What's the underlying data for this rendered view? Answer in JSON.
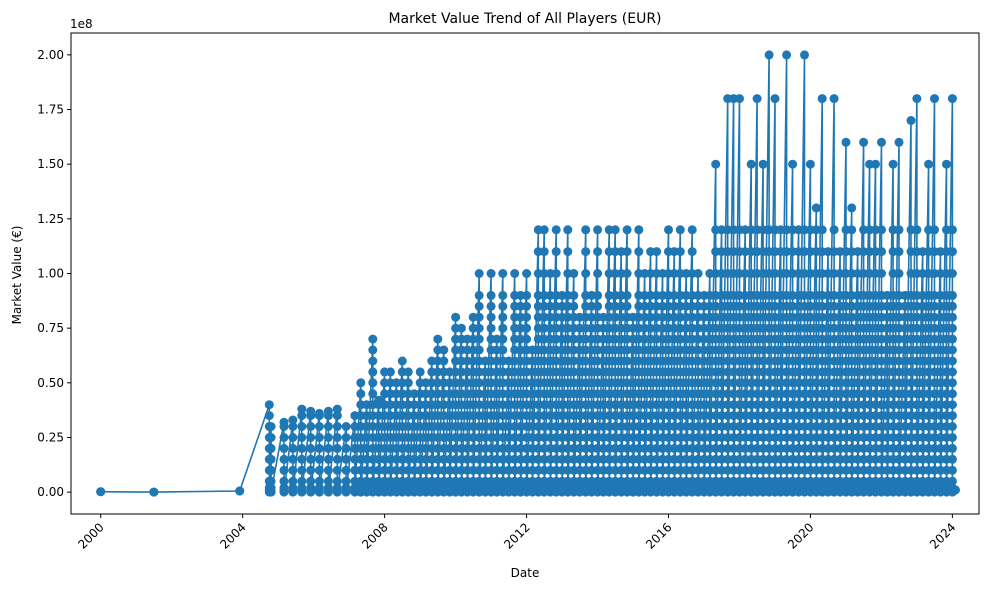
{
  "chart_data": {
    "type": "line",
    "title": "Market Value Trend of All Players (EUR)",
    "xlabel": "Date",
    "ylabel": "Market Value (€)",
    "y_scale_label": "1e8",
    "marker": "circle",
    "line_color": "#1f77b4",
    "x_axis_type": "date",
    "xlim": [
      "1999-03-01",
      "2024-10-01"
    ],
    "ylim": [
      -10000000,
      210000000
    ],
    "grid": false,
    "legend": "none",
    "x_ticks": [
      {
        "value": "2000-01-01",
        "label": "2000"
      },
      {
        "value": "2004-01-01",
        "label": "2004"
      },
      {
        "value": "2008-01-01",
        "label": "2008"
      },
      {
        "value": "2012-01-01",
        "label": "2012"
      },
      {
        "value": "2016-01-01",
        "label": "2016"
      },
      {
        "value": "2020-01-01",
        "label": "2020"
      },
      {
        "value": "2024-01-01",
        "label": "2024"
      }
    ],
    "y_ticks": [
      {
        "value": 0,
        "label": "0.00"
      },
      {
        "value": 25000000,
        "label": "0.25"
      },
      {
        "value": 50000000,
        "label": "0.50"
      },
      {
        "value": 75000000,
        "label": "0.75"
      },
      {
        "value": 100000000,
        "label": "1.00"
      },
      {
        "value": 125000000,
        "label": "1.25"
      },
      {
        "value": 150000000,
        "label": "1.50"
      },
      {
        "value": 175000000,
        "label": "1.75"
      },
      {
        "value": 200000000,
        "label": "2.00"
      }
    ],
    "series": [
      {
        "x": [
          "2000-01-01",
          "2001-07-01",
          "2003-12-01",
          "2004-10-01",
          "2004-10-20",
          "2005-03-01",
          "2005-06-01",
          "2005-09-01",
          "2005-12-01",
          "2006-03-01",
          "2006-06-01",
          "2006-09-01",
          "2006-12-01",
          "2007-03-01",
          "2007-05-01",
          "2007-07-01",
          "2007-09-01",
          "2007-11-01",
          "2008-01-01",
          "2008-03-01",
          "2008-05-01",
          "2008-07-01",
          "2008-09-01",
          "2008-11-01",
          "2009-01-01",
          "2009-03-01",
          "2009-05-01",
          "2009-07-01",
          "2009-09-01",
          "2009-11-01",
          "2010-01-01",
          "2010-03-01",
          "2010-05-01",
          "2010-07-01",
          "2010-09-01",
          "2010-11-01",
          "2011-01-01",
          "2011-03-01",
          "2011-05-01",
          "2011-07-01",
          "2011-09-01",
          "2011-11-01",
          "2012-01-01",
          "2012-03-01",
          "2012-05-01",
          "2012-07-01",
          "2012-09-01",
          "2012-11-01",
          "2013-01-01",
          "2013-03-01",
          "2013-05-01",
          "2013-07-01",
          "2013-09-01",
          "2013-11-01",
          "2014-01-01",
          "2014-03-01",
          "2014-05-01",
          "2014-07-01",
          "2014-09-01",
          "2014-11-01",
          "2015-01-01",
          "2015-03-01",
          "2015-05-01",
          "2015-07-01",
          "2015-09-01",
          "2015-11-01",
          "2016-01-01",
          "2016-03-01",
          "2016-05-01",
          "2016-07-01",
          "2016-09-01",
          "2016-11-01",
          "2017-01-01",
          "2017-03-01",
          "2017-05-01",
          "2017-07-01",
          "2017-09-01",
          "2017-11-01",
          "2018-01-01",
          "2018-03-01",
          "2018-05-01",
          "2018-07-01",
          "2018-09-01",
          "2018-11-01",
          "2019-01-01",
          "2019-03-01",
          "2019-05-01",
          "2019-07-01",
          "2019-09-01",
          "2019-11-01",
          "2020-01-01",
          "2020-03-01",
          "2020-05-01",
          "2020-07-01",
          "2020-09-01",
          "2020-11-01",
          "2021-01-01",
          "2021-03-01",
          "2021-05-01",
          "2021-07-01",
          "2021-09-01",
          "2021-11-01",
          "2022-01-01",
          "2022-03-01",
          "2022-05-01",
          "2022-07-01",
          "2022-09-01",
          "2022-11-01",
          "2023-01-01",
          "2023-03-01",
          "2023-05-01",
          "2023-07-01",
          "2023-09-01",
          "2023-11-01",
          "2024-01-01",
          "2024-02-01"
        ],
        "max_values": [
          200000,
          0,
          500000,
          40000000,
          30000000,
          32000000,
          33000000,
          38000000,
          37000000,
          36000000,
          37000000,
          38000000,
          30000000,
          35000000,
          50000000,
          40000000,
          70000000,
          42000000,
          55000000,
          55000000,
          50000000,
          60000000,
          55000000,
          45000000,
          55000000,
          50000000,
          60000000,
          70000000,
          65000000,
          55000000,
          80000000,
          75000000,
          70000000,
          80000000,
          100000000,
          60000000,
          100000000,
          70000000,
          100000000,
          60000000,
          100000000,
          90000000,
          100000000,
          65000000,
          120000000,
          120000000,
          100000000,
          120000000,
          90000000,
          120000000,
          100000000,
          80000000,
          120000000,
          90000000,
          120000000,
          80000000,
          120000000,
          120000000,
          110000000,
          120000000,
          80000000,
          120000000,
          100000000,
          110000000,
          110000000,
          100000000,
          120000000,
          110000000,
          120000000,
          100000000,
          120000000,
          100000000,
          90000000,
          100000000,
          150000000,
          120000000,
          180000000,
          180000000,
          180000000,
          120000000,
          150000000,
          180000000,
          150000000,
          200000000,
          180000000,
          120000000,
          200000000,
          150000000,
          120000000,
          200000000,
          150000000,
          130000000,
          180000000,
          110000000,
          180000000,
          110000000,
          160000000,
          130000000,
          110000000,
          160000000,
          150000000,
          150000000,
          160000000,
          90000000,
          150000000,
          160000000,
          90000000,
          170000000,
          180000000,
          110000000,
          150000000,
          180000000,
          110000000,
          150000000,
          180000000,
          1000000
        ],
        "min_values": [
          200000,
          0,
          500000,
          0,
          0,
          0,
          0,
          0,
          0,
          0,
          0,
          0,
          0,
          0,
          0,
          0,
          0,
          0,
          0,
          0,
          0,
          0,
          0,
          0,
          0,
          0,
          0,
          0,
          0,
          0,
          0,
          0,
          0,
          0,
          0,
          0,
          0,
          0,
          0,
          0,
          0,
          0,
          0,
          0,
          0,
          0,
          0,
          0,
          0,
          0,
          0,
          0,
          0,
          0,
          0,
          0,
          0,
          0,
          0,
          0,
          0,
          0,
          0,
          0,
          0,
          0,
          0,
          0,
          0,
          0,
          0,
          0,
          0,
          0,
          0,
          0,
          0,
          0,
          0,
          0,
          0,
          0,
          0,
          0,
          0,
          0,
          0,
          0,
          0,
          0,
          0,
          0,
          0,
          0,
          0,
          0,
          0,
          0,
          0,
          0,
          0,
          0,
          0,
          0,
          0,
          0,
          0,
          0,
          0,
          0,
          0,
          0,
          0,
          0,
          0,
          1000000
        ],
        "sampled_levels": [
          1000000,
          2000000,
          5000000,
          10000000,
          15000000,
          20000000,
          25000000,
          30000000,
          35000000,
          40000000,
          45000000,
          50000000,
          55000000,
          60000000,
          65000000,
          70000000,
          75000000,
          80000000,
          85000000,
          90000000,
          100000000,
          110000000,
          120000000
        ]
      }
    ]
  }
}
